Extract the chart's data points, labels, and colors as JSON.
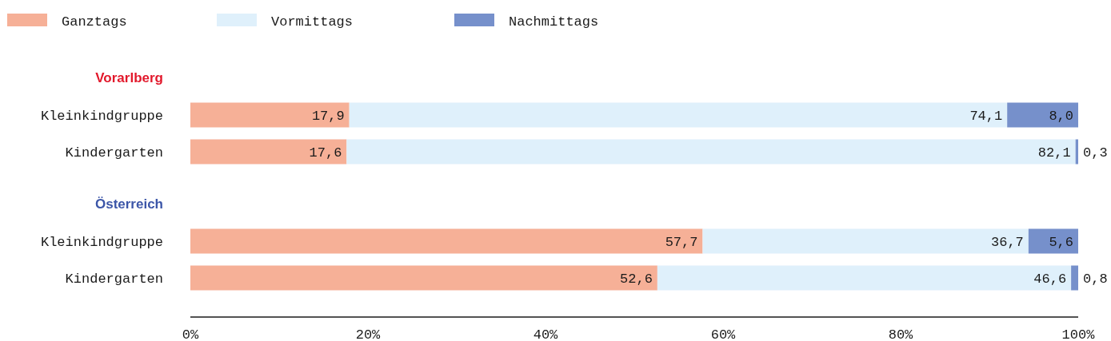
{
  "chart_data": {
    "type": "bar",
    "orientation": "horizontal",
    "stacked": true,
    "categories": [
      "Kleinkindgruppe",
      "Kindergarten",
      "Kleinkindgruppe",
      "Kindergarten"
    ],
    "annotations": [
      "Vorarlberg",
      "Österreich"
    ],
    "series": [
      {
        "name": "Ganztags",
        "color": "#f6b097",
        "values": [
          17.9,
          17.6,
          57.7,
          52.6
        ],
        "value_labels": [
          "17,9",
          "17,6",
          "57,7",
          "52,6"
        ]
      },
      {
        "name": "Vormittags",
        "color": "#dff0fb",
        "values": [
          74.1,
          82.1,
          36.7,
          46.6
        ],
        "value_labels": [
          "74,1",
          "82,1",
          "36,7",
          "46,6"
        ]
      },
      {
        "name": "Nachmittags",
        "color": "#7690cb",
        "values": [
          8.0,
          0.3,
          5.6,
          0.8
        ],
        "value_labels": [
          "8,0",
          "0,3",
          "5,6",
          "0,8"
        ]
      }
    ],
    "xlim": [
      0,
      100
    ],
    "xticks": [
      {
        "value": 0,
        "label": "0%"
      },
      {
        "value": 20,
        "label": "20%"
      },
      {
        "value": 40,
        "label": "40%"
      },
      {
        "value": 60,
        "label": "60%"
      },
      {
        "value": 80,
        "label": "80%"
      },
      {
        "value": 100,
        "label": "100%"
      }
    ],
    "grid": false,
    "legend": "top left"
  }
}
